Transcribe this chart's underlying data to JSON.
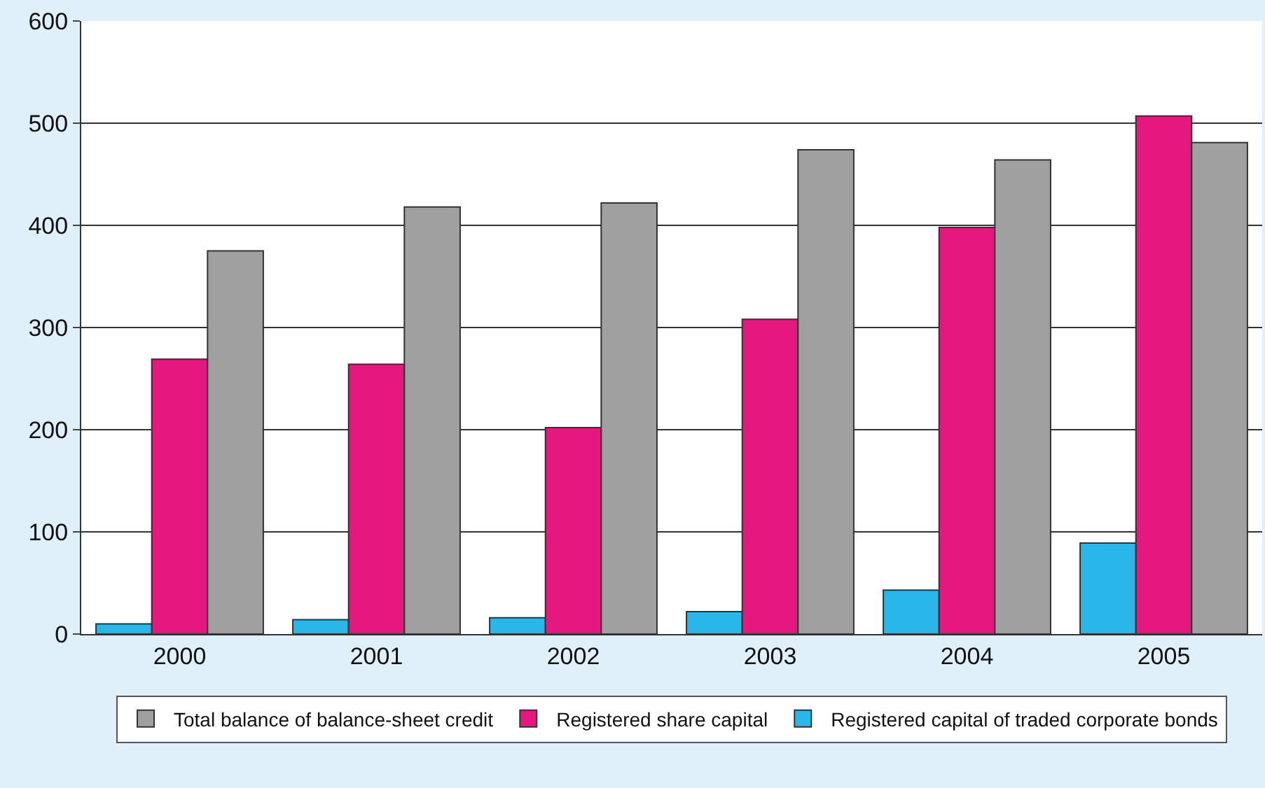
{
  "chart_data": {
    "type": "bar",
    "categories": [
      "2000",
      "2001",
      "2002",
      "2003",
      "2004",
      "2005"
    ],
    "series": [
      {
        "name": "Registered capital of traded corporate bonds",
        "color": "#29b6e8",
        "values": [
          10,
          14,
          16,
          22,
          43,
          89
        ]
      },
      {
        "name": "Registered share capital",
        "color": "#e6177e",
        "values": [
          269,
          264,
          202,
          308,
          398,
          507
        ]
      },
      {
        "name": "Total balance of balance-sheet credit",
        "color": "#a0a0a0",
        "values": [
          375,
          418,
          422,
          474,
          464,
          481
        ]
      }
    ],
    "ylim": [
      0,
      600
    ],
    "yticks": [
      0,
      100,
      200,
      300,
      400,
      500,
      600
    ],
    "grid": "y",
    "legend": "bottom"
  }
}
